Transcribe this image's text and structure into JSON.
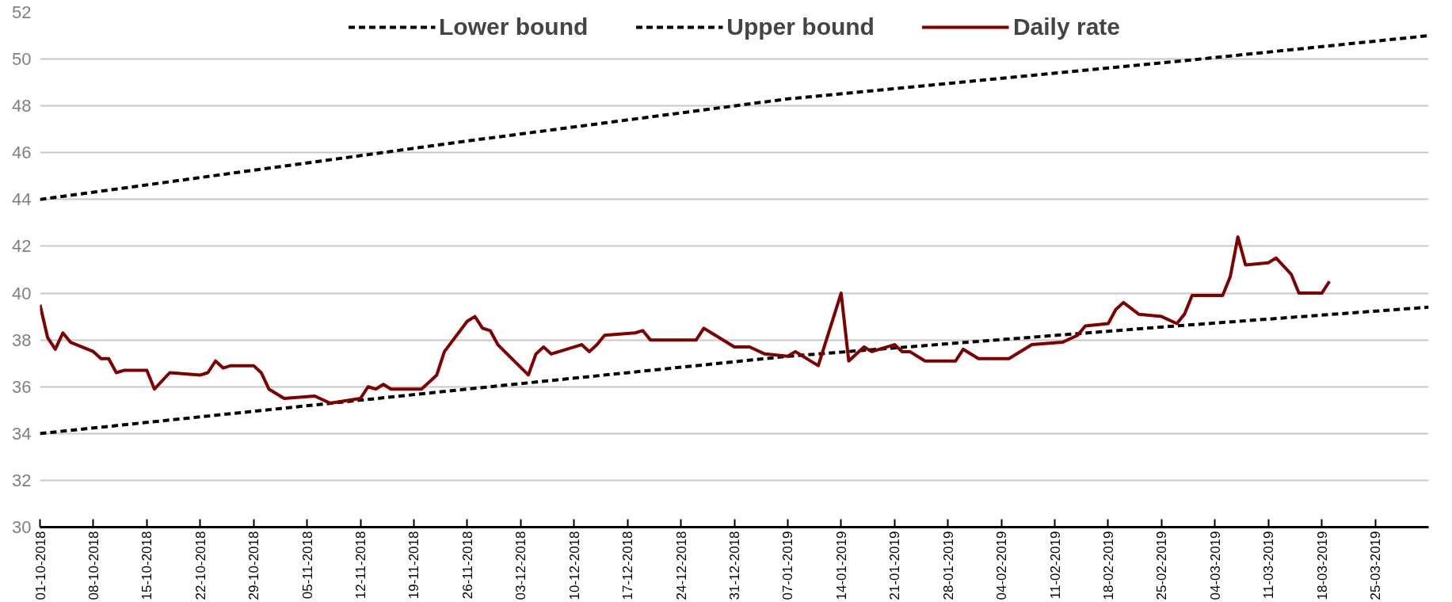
{
  "chart_data": {
    "type": "line",
    "xlim": [
      "2018-10-01",
      "2019-04-01"
    ],
    "ylim": [
      30,
      52
    ],
    "yticks": [
      30,
      32,
      34,
      36,
      38,
      40,
      42,
      44,
      46,
      48,
      50,
      52
    ],
    "xticks": [
      {
        "value": "2018-10-01",
        "label": "01-10-2018"
      },
      {
        "value": "2018-10-08",
        "label": "08-10-2018"
      },
      {
        "value": "2018-10-15",
        "label": "15-10-2018"
      },
      {
        "value": "2018-10-22",
        "label": "22-10-2018"
      },
      {
        "value": "2018-10-29",
        "label": "29-10-2018"
      },
      {
        "value": "2018-11-05",
        "label": "05-11-2018"
      },
      {
        "value": "2018-11-12",
        "label": "12-11-2018"
      },
      {
        "value": "2018-11-19",
        "label": "19-11-2018"
      },
      {
        "value": "2018-11-26",
        "label": "26-11-2018"
      },
      {
        "value": "2018-12-03",
        "label": "03-12-2018"
      },
      {
        "value": "2018-12-10",
        "label": "10-12-2018"
      },
      {
        "value": "2018-12-17",
        "label": "17-12-2018"
      },
      {
        "value": "2018-12-24",
        "label": "24-12-2018"
      },
      {
        "value": "2018-12-31",
        "label": "31-12-2018"
      },
      {
        "value": "2019-01-07",
        "label": "07-01-2019"
      },
      {
        "value": "2019-01-14",
        "label": "14-01-2019"
      },
      {
        "value": "2019-01-21",
        "label": "21-01-2019"
      },
      {
        "value": "2019-01-28",
        "label": "28-01-2019"
      },
      {
        "value": "2019-02-04",
        "label": "04-02-2019"
      },
      {
        "value": "2019-02-11",
        "label": "11-02-2019"
      },
      {
        "value": "2019-02-18",
        "label": "18-02-2019"
      },
      {
        "value": "2019-02-25",
        "label": "25-02-2019"
      },
      {
        "value": "2019-03-04",
        "label": "04-03-2019"
      },
      {
        "value": "2019-03-11",
        "label": "11-03-2019"
      },
      {
        "value": "2019-03-18",
        "label": "18-03-2019"
      },
      {
        "value": "2019-03-25",
        "label": "25-03-2019"
      }
    ],
    "grid": "y",
    "legend": "top",
    "series": [
      {
        "name": "Lower bound",
        "color": "#000000",
        "line_style": "dashed",
        "x": [
          "2018-10-01",
          "2018-11-26",
          "2019-01-07",
          "2019-02-27",
          "2019-04-01"
        ],
        "values": [
          34.0,
          35.9,
          37.3,
          38.6,
          39.4
        ]
      },
      {
        "name": "Upper bound",
        "color": "#000000",
        "line_style": "dashed",
        "x": [
          "2018-10-01",
          "2018-11-26",
          "2019-01-07",
          "2019-02-27",
          "2019-04-01"
        ],
        "values": [
          44.0,
          46.5,
          48.3,
          49.9,
          51.0
        ]
      },
      {
        "name": "Daily rate",
        "color": "#7f0000",
        "line_style": "solid",
        "x": [
          "2018-10-01",
          "2018-10-02",
          "2018-10-03",
          "2018-10-04",
          "2018-10-05",
          "2018-10-08",
          "2018-10-09",
          "2018-10-10",
          "2018-10-11",
          "2018-10-12",
          "2018-10-15",
          "2018-10-16",
          "2018-10-18",
          "2018-10-22",
          "2018-10-23",
          "2018-10-24",
          "2018-10-25",
          "2018-10-26",
          "2018-10-29",
          "2018-10-30",
          "2018-10-31",
          "2018-11-02",
          "2018-11-06",
          "2018-11-08",
          "2018-11-12",
          "2018-11-13",
          "2018-11-14",
          "2018-11-15",
          "2018-11-16",
          "2018-11-20",
          "2018-11-22",
          "2018-11-23",
          "2018-11-26",
          "2018-11-27",
          "2018-11-28",
          "2018-11-29",
          "2018-11-30",
          "2018-12-04",
          "2018-12-05",
          "2018-12-06",
          "2018-12-07",
          "2018-12-11",
          "2018-12-12",
          "2018-12-13",
          "2018-12-14",
          "2018-12-18",
          "2018-12-19",
          "2018-12-20",
          "2018-12-26",
          "2018-12-27",
          "2018-12-28",
          "2018-12-31",
          "2019-01-02",
          "2019-01-04",
          "2019-01-07",
          "2019-01-08",
          "2019-01-09",
          "2019-01-11",
          "2019-01-14",
          "2019-01-15",
          "2019-01-17",
          "2019-01-18",
          "2019-01-21",
          "2019-01-22",
          "2019-01-23",
          "2019-01-25",
          "2019-01-29",
          "2019-01-30",
          "2019-02-01",
          "2019-02-05",
          "2019-02-08",
          "2019-02-12",
          "2019-02-14",
          "2019-02-15",
          "2019-02-18",
          "2019-02-19",
          "2019-02-20",
          "2019-02-22",
          "2019-02-25",
          "2019-02-27",
          "2019-02-28",
          "2019-03-01",
          "2019-03-05",
          "2019-03-06",
          "2019-03-07",
          "2019-03-08",
          "2019-03-11",
          "2019-03-12",
          "2019-03-14",
          "2019-03-15",
          "2019-03-18",
          "2019-03-19"
        ],
        "values": [
          39.5,
          38.1,
          37.6,
          38.3,
          37.9,
          37.5,
          37.2,
          37.2,
          36.6,
          36.7,
          36.7,
          35.9,
          36.6,
          36.5,
          36.6,
          37.1,
          36.8,
          36.9,
          36.9,
          36.6,
          35.9,
          35.5,
          35.6,
          35.3,
          35.5,
          36.0,
          35.9,
          36.1,
          35.9,
          35.9,
          36.5,
          37.5,
          38.8,
          39.0,
          38.5,
          38.4,
          37.8,
          36.5,
          37.4,
          37.7,
          37.4,
          37.8,
          37.5,
          37.8,
          38.2,
          38.3,
          38.4,
          38.0,
          38.0,
          38.5,
          38.3,
          37.7,
          37.7,
          37.4,
          37.3,
          37.5,
          37.3,
          36.9,
          40.0,
          37.1,
          37.7,
          37.5,
          37.8,
          37.5,
          37.5,
          37.1,
          37.1,
          37.6,
          37.2,
          37.2,
          37.8,
          37.9,
          38.2,
          38.6,
          38.7,
          39.3,
          39.6,
          39.1,
          39.0,
          38.7,
          39.1,
          39.9,
          39.9,
          40.7,
          42.4,
          41.2,
          41.3,
          41.5,
          40.8,
          40.0,
          40.0,
          40.5
        ]
      }
    ]
  }
}
